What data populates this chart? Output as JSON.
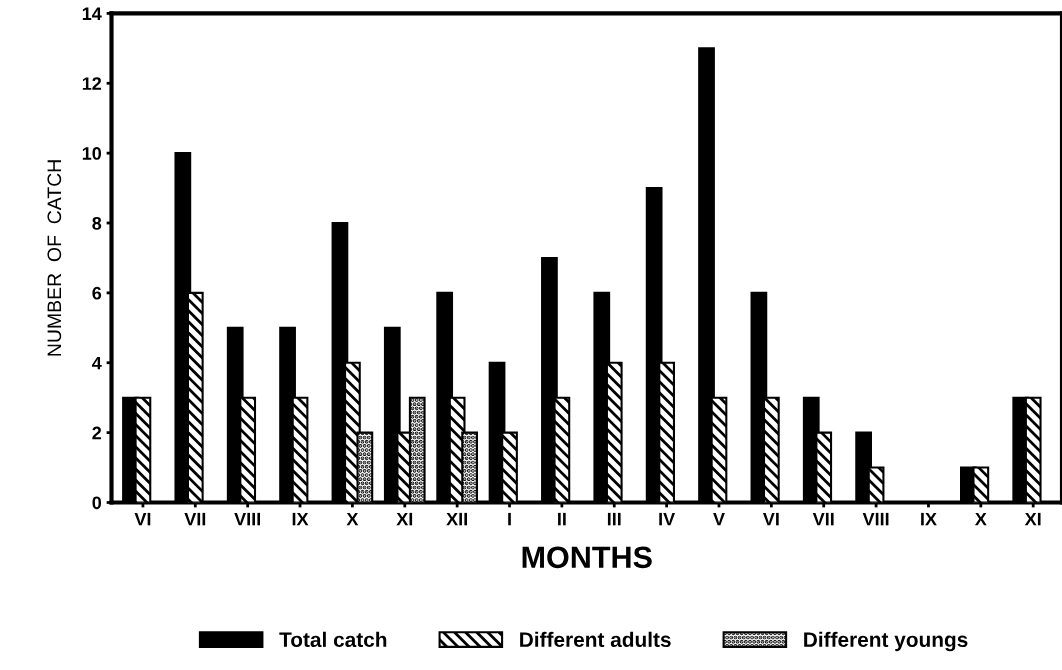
{
  "chart_data": {
    "type": "bar",
    "xlabel": "MONTHS",
    "ylabel": "NUMBER  OF  CATCH",
    "categories": [
      "VI",
      "VII",
      "VIII",
      "IX",
      "X",
      "XI",
      "XII",
      "I",
      "II",
      "III",
      "IV",
      "V",
      "VI",
      "VII",
      "VIII",
      "IX",
      "X",
      "XI"
    ],
    "series": [
      {
        "name": "Total catch",
        "color": "#000000",
        "values": [
          3,
          10,
          5,
          5,
          8,
          5,
          6,
          4,
          7,
          6,
          9,
          13,
          6,
          3,
          2,
          0,
          1,
          3
        ]
      },
      {
        "name": "Different adults",
        "color": "#000000",
        "values": [
          3,
          6,
          3,
          3,
          4,
          2,
          3,
          2,
          3,
          4,
          4,
          3,
          3,
          2,
          1,
          0,
          1,
          3
        ]
      },
      {
        "name": "Different youngs",
        "color": "#000000",
        "values": [
          null,
          null,
          null,
          null,
          2,
          3,
          2,
          null,
          null,
          null,
          null,
          null,
          null,
          null,
          null,
          null,
          null,
          null
        ]
      }
    ],
    "ylim": [
      0,
      14
    ],
    "yticks": [
      0,
      2,
      4,
      6,
      8,
      10,
      12,
      14
    ],
    "grid": false,
    "legend": "bottom"
  }
}
